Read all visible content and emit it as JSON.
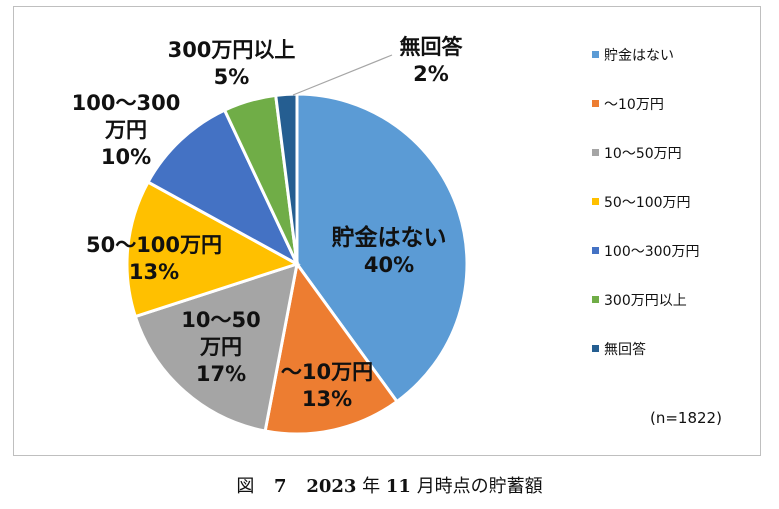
{
  "chart_data": {
    "type": "pie",
    "categories": [
      "貯金はない",
      "～10万円",
      "10～50万円",
      "50～100万円",
      "100～300万円",
      "300万円以上",
      "無回答"
    ],
    "values": [
      40,
      13,
      17,
      13,
      10,
      5,
      2
    ],
    "colors": [
      "#5b9bd5",
      "#ed7d31",
      "#a5a5a5",
      "#ffc000",
      "#4472c4",
      "#70ad47",
      "#255e91"
    ],
    "slice_labels": [
      {
        "lines": [
          "貯金はない",
          "40%"
        ]
      },
      {
        "lines": [
          "～10万円",
          "13%"
        ]
      },
      {
        "lines": [
          "10～50",
          "万円",
          "17%"
        ]
      },
      {
        "lines": [
          "50～100万円",
          "13%"
        ]
      },
      {
        "lines": [
          "100～300",
          "万円",
          "10%"
        ]
      },
      {
        "lines": [
          "300万円以上",
          "5%"
        ]
      },
      {
        "lines": [
          "無回答",
          "2%"
        ]
      }
    ],
    "legend": [
      "貯金はない",
      "～10万円",
      "10～50万円",
      "50～100万円",
      "100～300万円",
      "300万円以上",
      "無回答"
    ],
    "legend_position": "right",
    "note": "(n=1822)"
  },
  "caption": {
    "prefix": "図",
    "number": "7",
    "year": "2023",
    "nen": "年",
    "month": "11",
    "rest": "月時点の貯蓄額"
  }
}
